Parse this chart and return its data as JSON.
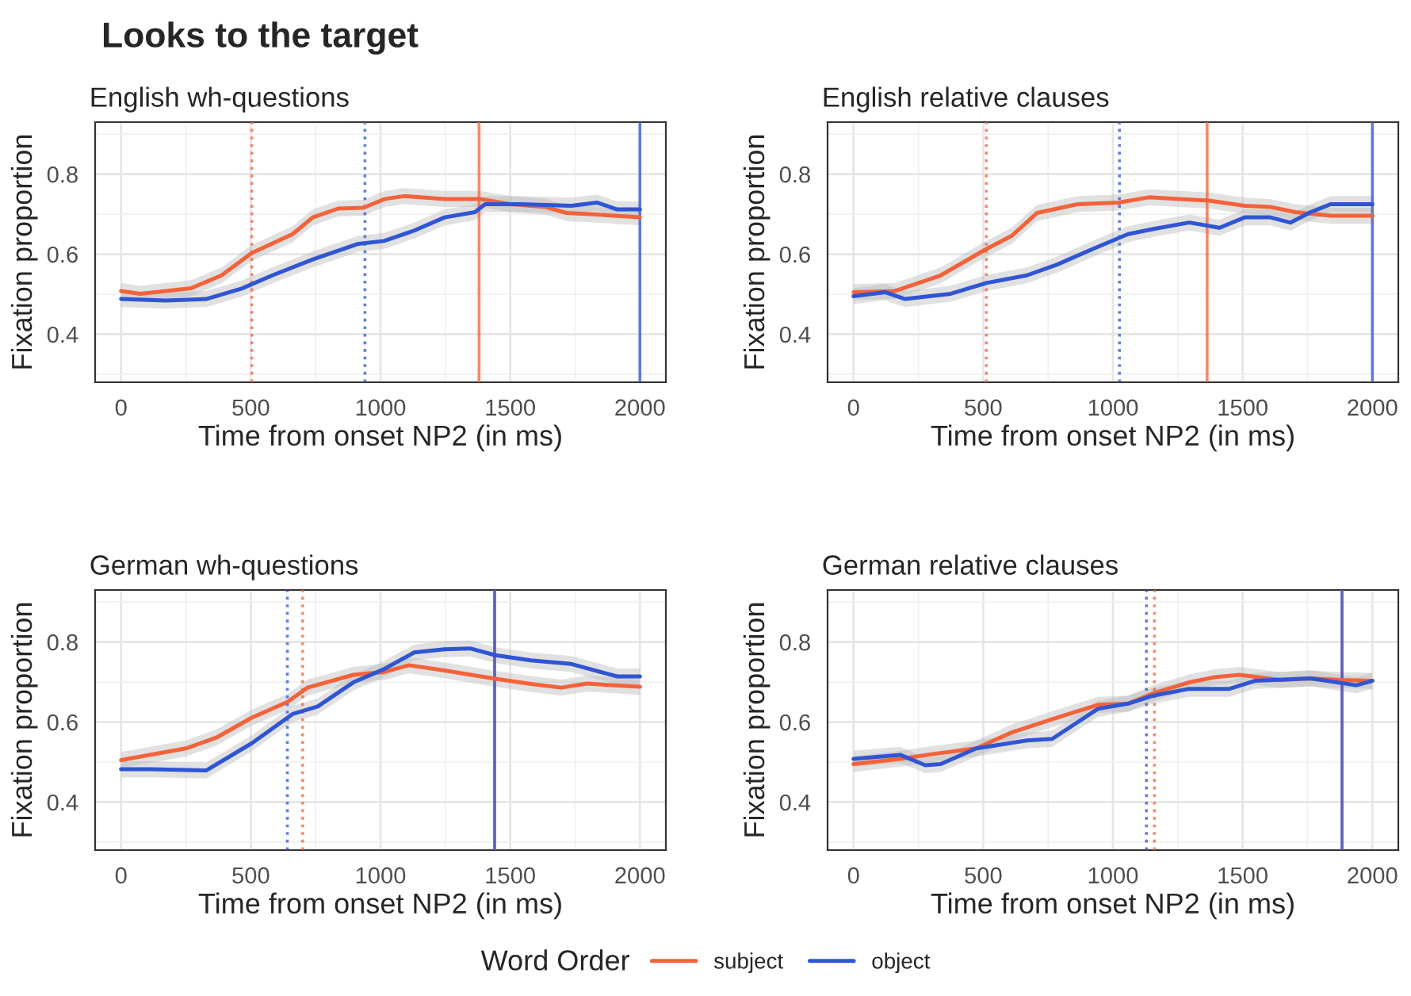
{
  "chart_data": [
    {
      "type": "line",
      "title": "Looks to the target",
      "subtitle": "English wh-questions",
      "xlabel": "Time from onset NP2 (in ms)",
      "ylabel": "Fixation proportion",
      "legend_title": "Word Order",
      "legend": "bottom",
      "grid": true,
      "xlim": [
        -100,
        2100
      ],
      "ylim": [
        0.28,
        0.93
      ],
      "xticks": [
        0,
        500,
        1000,
        1500,
        2000
      ],
      "yticks": [
        0.4,
        0.6,
        0.8
      ],
      "series": [
        {
          "name": "subject",
          "color": "#f4623a",
          "x": [
            0,
            74,
            270,
            387,
            504,
            661,
            739,
            837,
            934,
            1017,
            1091,
            1247,
            1384,
            1501,
            1638,
            1716,
            1834,
            2000
          ],
          "values": [
            0.508,
            0.501,
            0.515,
            0.547,
            0.603,
            0.65,
            0.692,
            0.714,
            0.716,
            0.738,
            0.745,
            0.738,
            0.738,
            0.725,
            0.718,
            0.703,
            0.699,
            0.692
          ],
          "lower": [
            0.488,
            0.481,
            0.495,
            0.527,
            0.583,
            0.63,
            0.672,
            0.694,
            0.696,
            0.718,
            0.725,
            0.718,
            0.718,
            0.705,
            0.698,
            0.683,
            0.679,
            0.672
          ],
          "upper": [
            0.528,
            0.521,
            0.535,
            0.567,
            0.623,
            0.67,
            0.712,
            0.734,
            0.736,
            0.758,
            0.765,
            0.758,
            0.758,
            0.745,
            0.738,
            0.723,
            0.719,
            0.712
          ]
        },
        {
          "name": "object",
          "color": "#2f55d4",
          "x": [
            0,
            172,
            328,
            465,
            583,
            739,
            915,
            1013,
            1130,
            1247,
            1364,
            1403,
            1540,
            1736,
            1834,
            1912,
            2000
          ],
          "values": [
            0.488,
            0.484,
            0.488,
            0.514,
            0.547,
            0.587,
            0.626,
            0.633,
            0.659,
            0.692,
            0.705,
            0.725,
            0.725,
            0.721,
            0.729,
            0.712,
            0.712
          ],
          "lower": [
            0.468,
            0.464,
            0.468,
            0.494,
            0.527,
            0.567,
            0.606,
            0.613,
            0.639,
            0.672,
            0.685,
            0.705,
            0.705,
            0.701,
            0.709,
            0.692,
            0.692
          ],
          "upper": [
            0.508,
            0.504,
            0.508,
            0.534,
            0.567,
            0.607,
            0.646,
            0.653,
            0.679,
            0.712,
            0.725,
            0.745,
            0.745,
            0.741,
            0.749,
            0.732,
            0.732
          ]
        }
      ],
      "ref_lines": [
        {
          "axis": "x",
          "value": 504,
          "color": "#f4623a",
          "line_style": "dotted"
        },
        {
          "axis": "x",
          "value": 940,
          "color": "#2f55d4",
          "line_style": "dotted"
        },
        {
          "axis": "x",
          "value": 1380,
          "color": "#f4623a",
          "line_style": "solid"
        },
        {
          "axis": "x",
          "value": 2000,
          "color": "#2f55d4",
          "line_style": "solid"
        }
      ]
    },
    {
      "type": "line",
      "subtitle": "English relative clauses",
      "xlabel": "Time from onset NP2 (in ms)",
      "ylabel": "Fixation proportion",
      "grid": true,
      "xlim": [
        -100,
        2100
      ],
      "ylim": [
        0.28,
        0.93
      ],
      "xticks": [
        0,
        500,
        1000,
        1500,
        2000
      ],
      "yticks": [
        0.4,
        0.6,
        0.8
      ],
      "series": [
        {
          "name": "subject",
          "color": "#f4623a",
          "x": [
            0,
            160,
            336,
            512,
            610,
            707,
            864,
            1021,
            1138,
            1255,
            1371,
            1508,
            1606,
            1703,
            1840,
            2000
          ],
          "values": [
            0.505,
            0.508,
            0.547,
            0.613,
            0.646,
            0.703,
            0.725,
            0.729,
            0.742,
            0.738,
            0.734,
            0.721,
            0.718,
            0.705,
            0.696,
            0.696
          ],
          "lower": [
            0.485,
            0.488,
            0.527,
            0.593,
            0.626,
            0.683,
            0.705,
            0.709,
            0.722,
            0.718,
            0.714,
            0.701,
            0.698,
            0.685,
            0.676,
            0.676
          ],
          "upper": [
            0.525,
            0.528,
            0.567,
            0.633,
            0.666,
            0.723,
            0.745,
            0.749,
            0.762,
            0.758,
            0.754,
            0.741,
            0.738,
            0.725,
            0.716,
            0.716
          ]
        },
        {
          "name": "object",
          "color": "#2f55d4",
          "x": [
            0,
            121,
            199,
            375,
            512,
            668,
            785,
            922,
            1058,
            1156,
            1294,
            1411,
            1508,
            1606,
            1684,
            1762,
            1840,
            2000
          ],
          "values": [
            0.495,
            0.505,
            0.488,
            0.501,
            0.528,
            0.547,
            0.574,
            0.613,
            0.65,
            0.663,
            0.679,
            0.666,
            0.692,
            0.692,
            0.679,
            0.705,
            0.725,
            0.725
          ],
          "lower": [
            0.475,
            0.485,
            0.468,
            0.481,
            0.508,
            0.527,
            0.554,
            0.593,
            0.63,
            0.643,
            0.659,
            0.646,
            0.672,
            0.672,
            0.659,
            0.685,
            0.705,
            0.705
          ],
          "upper": [
            0.515,
            0.525,
            0.508,
            0.521,
            0.548,
            0.567,
            0.594,
            0.633,
            0.67,
            0.683,
            0.699,
            0.686,
            0.712,
            0.712,
            0.699,
            0.725,
            0.745,
            0.745
          ]
        }
      ],
      "ref_lines": [
        {
          "axis": "x",
          "value": 512,
          "color": "#f4623a",
          "line_style": "dotted"
        },
        {
          "axis": "x",
          "value": 1025,
          "color": "#2f55d4",
          "line_style": "dotted"
        },
        {
          "axis": "x",
          "value": 1363,
          "color": "#f4623a",
          "line_style": "solid"
        },
        {
          "axis": "x",
          "value": 2000,
          "color": "#2f55d4",
          "line_style": "solid"
        }
      ]
    },
    {
      "type": "line",
      "subtitle": "German wh-questions",
      "xlabel": "Time from onset NP2 (in ms)",
      "ylabel": "Fixation proportion",
      "grid": true,
      "xlim": [
        -100,
        2100
      ],
      "ylim": [
        0.28,
        0.93
      ],
      "xticks": [
        0,
        500,
        1000,
        1500,
        2000
      ],
      "yticks": [
        0.4,
        0.6,
        0.8
      ],
      "series": [
        {
          "name": "subject",
          "color": "#f4623a",
          "x": [
            0,
            250,
            367,
            504,
            641,
            719,
            895,
            1013,
            1110,
            1247,
            1443,
            1580,
            1697,
            1795,
            2000
          ],
          "values": [
            0.505,
            0.534,
            0.561,
            0.611,
            0.65,
            0.686,
            0.718,
            0.725,
            0.742,
            0.729,
            0.708,
            0.695,
            0.686,
            0.696,
            0.688
          ],
          "lower": [
            0.485,
            0.514,
            0.541,
            0.591,
            0.63,
            0.666,
            0.698,
            0.705,
            0.722,
            0.709,
            0.688,
            0.675,
            0.666,
            0.676,
            0.668
          ],
          "upper": [
            0.525,
            0.554,
            0.581,
            0.631,
            0.67,
            0.706,
            0.738,
            0.745,
            0.762,
            0.749,
            0.728,
            0.715,
            0.706,
            0.716,
            0.708
          ]
        },
        {
          "name": "object",
          "color": "#2f55d4",
          "x": [
            0,
            113,
            328,
            504,
            661,
            758,
            895,
            1013,
            1130,
            1247,
            1345,
            1443,
            1580,
            1736,
            1912,
            2000
          ],
          "values": [
            0.482,
            0.482,
            0.479,
            0.547,
            0.62,
            0.639,
            0.699,
            0.732,
            0.774,
            0.782,
            0.784,
            0.767,
            0.754,
            0.745,
            0.714,
            0.714
          ],
          "lower": [
            0.462,
            0.462,
            0.459,
            0.527,
            0.6,
            0.619,
            0.679,
            0.712,
            0.754,
            0.762,
            0.764,
            0.747,
            0.734,
            0.725,
            0.694,
            0.694
          ],
          "upper": [
            0.502,
            0.502,
            0.499,
            0.567,
            0.64,
            0.659,
            0.719,
            0.752,
            0.794,
            0.802,
            0.804,
            0.787,
            0.774,
            0.765,
            0.734,
            0.734
          ]
        }
      ],
      "ref_lines": [
        {
          "axis": "x",
          "value": 641,
          "color": "#2f55d4",
          "line_style": "dotted"
        },
        {
          "axis": "x",
          "value": 700,
          "color": "#f4623a",
          "line_style": "dotted"
        },
        {
          "axis": "x",
          "value": 1440,
          "color": "#f4623a",
          "line_style": "solid"
        },
        {
          "axis": "x",
          "value": 1440,
          "color": "#2f55d4",
          "line_style": "solid"
        }
      ]
    },
    {
      "type": "line",
      "subtitle": "German relative clauses",
      "xlabel": "Time from onset NP2 (in ms)",
      "ylabel": "Fixation proportion",
      "grid": true,
      "xlim": [
        -100,
        2100
      ],
      "ylim": [
        0.28,
        0.93
      ],
      "xticks": [
        0,
        500,
        1000,
        1500,
        2000
      ],
      "yticks": [
        0.4,
        0.6,
        0.8
      ],
      "series": [
        {
          "name": "subject",
          "color": "#f4623a",
          "x": [
            0,
            180,
            316,
            473,
            610,
            766,
            942,
            1058,
            1156,
            1293,
            1391,
            1488,
            1645,
            1762,
            1880,
            2000
          ],
          "values": [
            0.495,
            0.508,
            0.521,
            0.534,
            0.574,
            0.607,
            0.643,
            0.646,
            0.672,
            0.699,
            0.712,
            0.718,
            0.705,
            0.709,
            0.705,
            0.703
          ],
          "lower": [
            0.475,
            0.488,
            0.501,
            0.514,
            0.554,
            0.587,
            0.623,
            0.626,
            0.652,
            0.679,
            0.692,
            0.698,
            0.685,
            0.689,
            0.685,
            0.683
          ],
          "upper": [
            0.515,
            0.528,
            0.541,
            0.554,
            0.594,
            0.627,
            0.663,
            0.666,
            0.692,
            0.719,
            0.732,
            0.738,
            0.725,
            0.729,
            0.725,
            0.723
          ]
        },
        {
          "name": "object",
          "color": "#2f55d4",
          "x": [
            0,
            180,
            277,
            336,
            473,
            668,
            766,
            942,
            1058,
            1156,
            1293,
            1449,
            1547,
            1762,
            1938,
            2000
          ],
          "values": [
            0.508,
            0.518,
            0.492,
            0.495,
            0.534,
            0.554,
            0.558,
            0.633,
            0.646,
            0.666,
            0.683,
            0.683,
            0.703,
            0.709,
            0.692,
            0.703
          ],
          "lower": [
            0.488,
            0.498,
            0.472,
            0.475,
            0.514,
            0.534,
            0.538,
            0.613,
            0.626,
            0.646,
            0.663,
            0.663,
            0.683,
            0.689,
            0.672,
            0.683
          ],
          "upper": [
            0.528,
            0.538,
            0.512,
            0.515,
            0.554,
            0.574,
            0.578,
            0.653,
            0.666,
            0.686,
            0.703,
            0.703,
            0.723,
            0.729,
            0.712,
            0.723
          ]
        }
      ],
      "ref_lines": [
        {
          "axis": "x",
          "value": 1129,
          "color": "#2f55d4",
          "line_style": "dotted"
        },
        {
          "axis": "x",
          "value": 1160,
          "color": "#f4623a",
          "line_style": "dotted"
        },
        {
          "axis": "x",
          "value": 1883,
          "color": "#f4623a",
          "line_style": "solid"
        },
        {
          "axis": "x",
          "value": 1883,
          "color": "#2f55d4",
          "line_style": "solid"
        }
      ]
    }
  ]
}
